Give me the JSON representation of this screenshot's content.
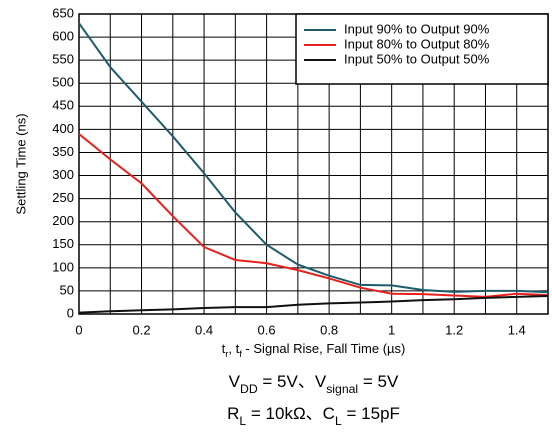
{
  "chart_data": {
    "type": "line",
    "y_label": "Settling Time (ns)",
    "x_label": [
      {
        "text": "t"
      },
      {
        "text": "r",
        "sub": true
      },
      {
        "text": ", t"
      },
      {
        "text": "f",
        "sub": true
      },
      {
        "text": " - Signal Rise, Fall Time (µs)"
      }
    ],
    "annotations": [
      [
        {
          "text": "V"
        },
        {
          "text": "DD",
          "sub": true
        },
        {
          "text": " = 5V、V"
        },
        {
          "text": "signal",
          "sub": true
        },
        {
          "text": " = 5V"
        }
      ],
      [
        {
          "text": "R"
        },
        {
          "text": "L",
          "sub": true
        },
        {
          "text": " = 10kΩ、C"
        },
        {
          "text": "L",
          "sub": true
        },
        {
          "text": " = 15pF"
        }
      ]
    ],
    "x": [
      0,
      0.1,
      0.2,
      0.3,
      0.4,
      0.5,
      0.6,
      0.7,
      0.8,
      0.9,
      1.0,
      1.1,
      1.2,
      1.3,
      1.4,
      1.5
    ],
    "series": [
      {
        "name": "Input 90% to Output 90%",
        "color": "#1f5c6b",
        "values": [
          630,
          535,
          460,
          385,
          305,
          220,
          150,
          107,
          83,
          63,
          62,
          52,
          48,
          50,
          50,
          47
        ]
      },
      {
        "name": "Input 80% to Output 80%",
        "color": "#e8201c",
        "values": [
          390,
          335,
          283,
          212,
          145,
          117,
          110,
          95,
          77,
          57,
          44,
          43,
          40,
          37,
          44,
          41
        ]
      },
      {
        "name": "Input 50% to Output 50%",
        "color": "#111111",
        "values": [
          3,
          6,
          8,
          10,
          13,
          15,
          15,
          20,
          23,
          25,
          27,
          30,
          32,
          35,
          37,
          39
        ]
      }
    ],
    "xlim": [
      0,
      1.5
    ],
    "xticks": [
      0,
      0.2,
      0.4,
      0.6,
      0.8,
      1,
      1.2,
      1.4
    ],
    "xminor_ticks": [
      0.1,
      0.3,
      0.5,
      0.7,
      0.9,
      1.1,
      1.3,
      1.5
    ],
    "ylim": [
      0,
      650
    ],
    "yticks": [
      0,
      50,
      100,
      150,
      200,
      250,
      300,
      350,
      400,
      450,
      500,
      550,
      600,
      650
    ],
    "grid": true,
    "legend": "upper right"
  }
}
